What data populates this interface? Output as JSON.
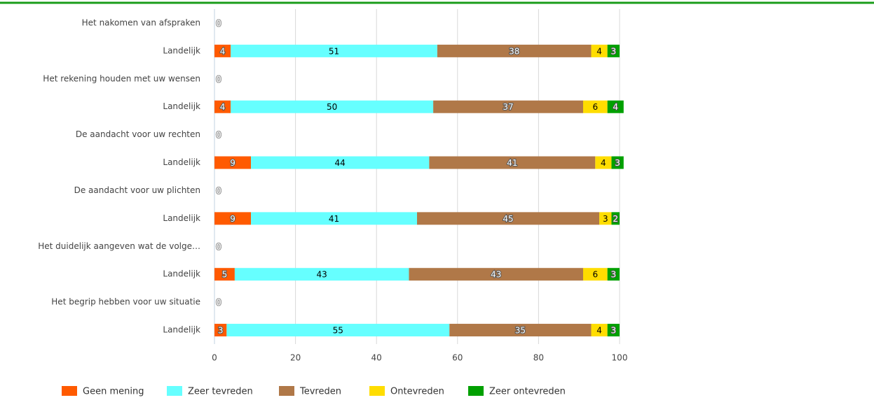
{
  "chart_data": {
    "type": "stacked-bar-horizontal",
    "categories": [
      "Het nakomen van afspraken",
      "Landelijk",
      "Het rekening houden met uw wensen",
      "Landelijk",
      "De aandacht voor uw rechten",
      "Landelijk",
      "De aandacht voor uw plichten",
      "Landelijk",
      "Het duidelijk aangeven wat de volge…",
      "Landelijk",
      "Het begrip hebben voor uw situatie",
      "Landelijk"
    ],
    "series": [
      {
        "name": "Geen mening",
        "color": "#ff5a00",
        "values": [
          0,
          4,
          0,
          4,
          0,
          9,
          0,
          9,
          0,
          5,
          0,
          3
        ]
      },
      {
        "name": "Zeer tevreden",
        "color": "#66ffff",
        "values": [
          0,
          51,
          0,
          50,
          0,
          44,
          0,
          41,
          0,
          43,
          0,
          55
        ]
      },
      {
        "name": "Tevreden",
        "color": "#b07848",
        "values": [
          0,
          38,
          0,
          37,
          0,
          41,
          0,
          45,
          0,
          43,
          0,
          35
        ]
      },
      {
        "name": "Ontevreden",
        "color": "#ffdd00",
        "values": [
          0,
          4,
          0,
          6,
          0,
          4,
          0,
          3,
          0,
          6,
          0,
          4
        ]
      },
      {
        "name": "Zeer ontevreden",
        "color": "#00a000",
        "values": [
          0,
          3,
          0,
          4,
          0,
          3,
          0,
          2,
          0,
          3,
          0,
          3
        ]
      }
    ],
    "xlim": [
      0,
      100
    ],
    "xticks": [
      0,
      20,
      40,
      60,
      80,
      100
    ],
    "grid": true
  }
}
